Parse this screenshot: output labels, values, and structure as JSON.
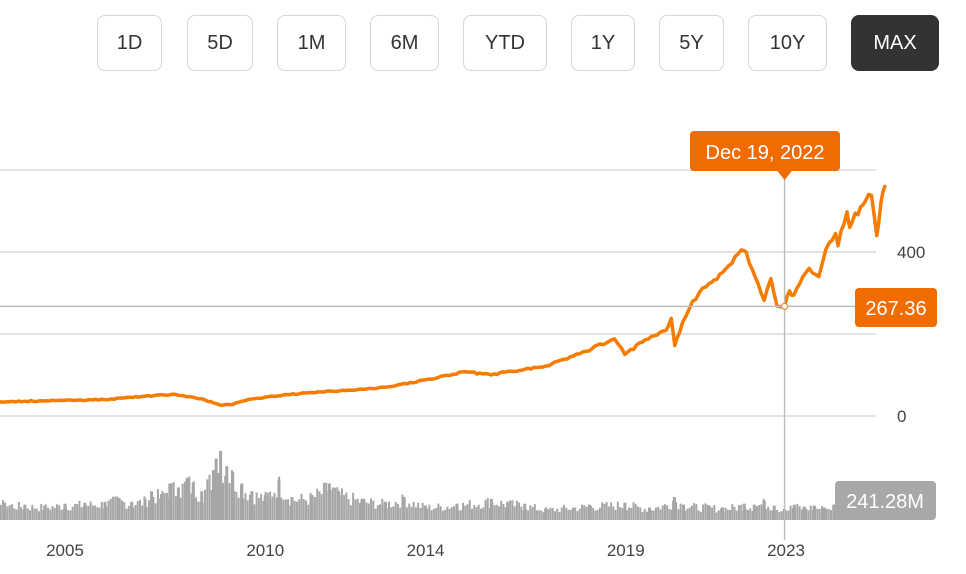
{
  "range_selector": {
    "buttons": [
      {
        "label": "1D",
        "active": false
      },
      {
        "label": "5D",
        "active": false
      },
      {
        "label": "1M",
        "active": false
      },
      {
        "label": "6M",
        "active": false
      },
      {
        "label": "YTD",
        "active": false
      },
      {
        "label": "1Y",
        "active": false
      },
      {
        "label": "5Y",
        "active": false
      },
      {
        "label": "10Y",
        "active": false
      },
      {
        "label": "MAX",
        "active": true
      }
    ]
  },
  "colors": {
    "price_line": "#f57c00",
    "volume_bar": "#a6a6a6",
    "grid": "#d9d9d9",
    "crosshair": "#bdbdbd",
    "callout": "#f06b00",
    "volume_badge": "#a8a8a8",
    "active_button": "#333333"
  },
  "chart_data": {
    "type": "line",
    "x_axis": {
      "type": "date",
      "tick_labels": [
        "2005",
        "2010",
        "2014",
        "2019",
        "2023"
      ],
      "tick_dates": [
        "2005-01-01",
        "2010-01-01",
        "2014-01-01",
        "2019-01-01",
        "2023-01-01"
      ]
    },
    "y_axis": {
      "position": "right",
      "tick_values": [
        0,
        200,
        400
      ],
      "tick_labels": [
        "0",
        "",
        "400"
      ],
      "ylim": [
        0,
        600
      ],
      "grid": true
    },
    "series": [
      {
        "x": [
          "2002-01-01",
          "2003-01-01",
          "2004-01-01",
          "2005-01-01",
          "2006-01-01",
          "2007-01-01",
          "2007-10-01",
          "2008-06-01",
          "2008-11-20",
          "2009-03-09",
          "2009-06-01",
          "2010-01-01",
          "2011-01-01",
          "2012-01-01",
          "2013-01-01",
          "2014-01-01",
          "2015-01-01",
          "2015-08-25",
          "2016-01-01",
          "2016-06-01",
          "2017-01-01",
          "2018-01-01",
          "2018-09-20",
          "2018-12-24",
          "2019-06-01",
          "2020-01-01",
          "2020-02-19",
          "2020-03-23",
          "2020-06-01",
          "2020-09-01",
          "2021-01-01",
          "2021-06-01",
          "2021-11-19",
          "2022-01-03",
          "2022-06-16",
          "2022-08-16",
          "2022-10-12",
          "2022-12-19",
          "2023-02-02",
          "2023-03-13",
          "2023-07-31",
          "2023-10-27",
          "2023-12-29",
          "2024-03-28",
          "2024-04-19",
          "2024-07-10",
          "2024-08-05",
          "2024-11-11",
          "2024-12-27",
          "2025-02-19",
          "2025-04-08",
          "2025-05-15",
          "2025-06-20"
        ],
        "values": [
          35,
          33,
          36,
          38,
          40,
          48,
          53,
          42,
          26,
          28,
          36,
          46,
          56,
          62,
          70,
          88,
          108,
          100,
          107,
          112,
          122,
          158,
          188,
          150,
          180,
          208,
          238,
          172,
          228,
          280,
          315,
          350,
          405,
          400,
          282,
          335,
          268,
          267,
          305,
          295,
          360,
          340,
          405,
          445,
          415,
          498,
          460,
          510,
          525,
          538,
          440,
          520,
          560
        ]
      }
    ],
    "volume": {
      "name": "Volume",
      "scale_max": 1000,
      "x": [
        "2002-01-01",
        "2002-07-01",
        "2003-01-01",
        "2003-07-01",
        "2004-01-01",
        "2004-07-01",
        "2005-01-01",
        "2005-07-01",
        "2006-01-01",
        "2006-05-01",
        "2006-09-01",
        "2007-01-01",
        "2007-03-01",
        "2007-06-01",
        "2007-08-15",
        "2007-11-01",
        "2008-01-20",
        "2008-03-15",
        "2008-06-01",
        "2008-09-15",
        "2008-10-10",
        "2008-11-20",
        "2009-01-15",
        "2009-03-10",
        "2009-06-01",
        "2009-09-01",
        "2010-01-01",
        "2010-05-06",
        "2010-09-01",
        "2011-03-01",
        "2011-08-08",
        "2011-11-01",
        "2012-06-01",
        "2013-01-01",
        "2013-06-20",
        "2014-01-01",
        "2014-10-15",
        "2015-08-24",
        "2016-01-20",
        "2016-06-24",
        "2017-01-01",
        "2018-02-05",
        "2018-12-24",
        "2019-08-05",
        "2020-03-12",
        "2020-03-20",
        "2020-06-11",
        "2021-01-27",
        "2021-06-01",
        "2021-12-17",
        "2022-03-18",
        "2022-06-17",
        "2022-09-16",
        "2022-12-16",
        "2023-03-17",
        "2023-06-16",
        "2023-09-15",
        "2023-12-15",
        "2024-03-15",
        "2024-06-21",
        "2024-09-20",
        "2024-12-20",
        "2025-03-21",
        "2025-04-07",
        "2025-06-20"
      ],
      "values": [
        190,
        230,
        250,
        180,
        160,
        150,
        170,
        180,
        190,
        230,
        190,
        220,
        300,
        270,
        380,
        340,
        440,
        390,
        300,
        520,
        640,
        720,
        560,
        500,
        380,
        300,
        260,
        420,
        240,
        260,
        380,
        300,
        220,
        190,
        240,
        150,
        170,
        220,
        190,
        170,
        120,
        160,
        180,
        130,
        200,
        240,
        160,
        150,
        130,
        170,
        160,
        200,
        150,
        115,
        160,
        140,
        150,
        130,
        160,
        140,
        140,
        160,
        120,
        190,
        130
      ]
    },
    "crosshair": {
      "date": "2022-12-19",
      "date_label": "Dec 19, 2022",
      "value": 267.36,
      "value_label": "267.36",
      "volume_label": "241.28M"
    }
  }
}
